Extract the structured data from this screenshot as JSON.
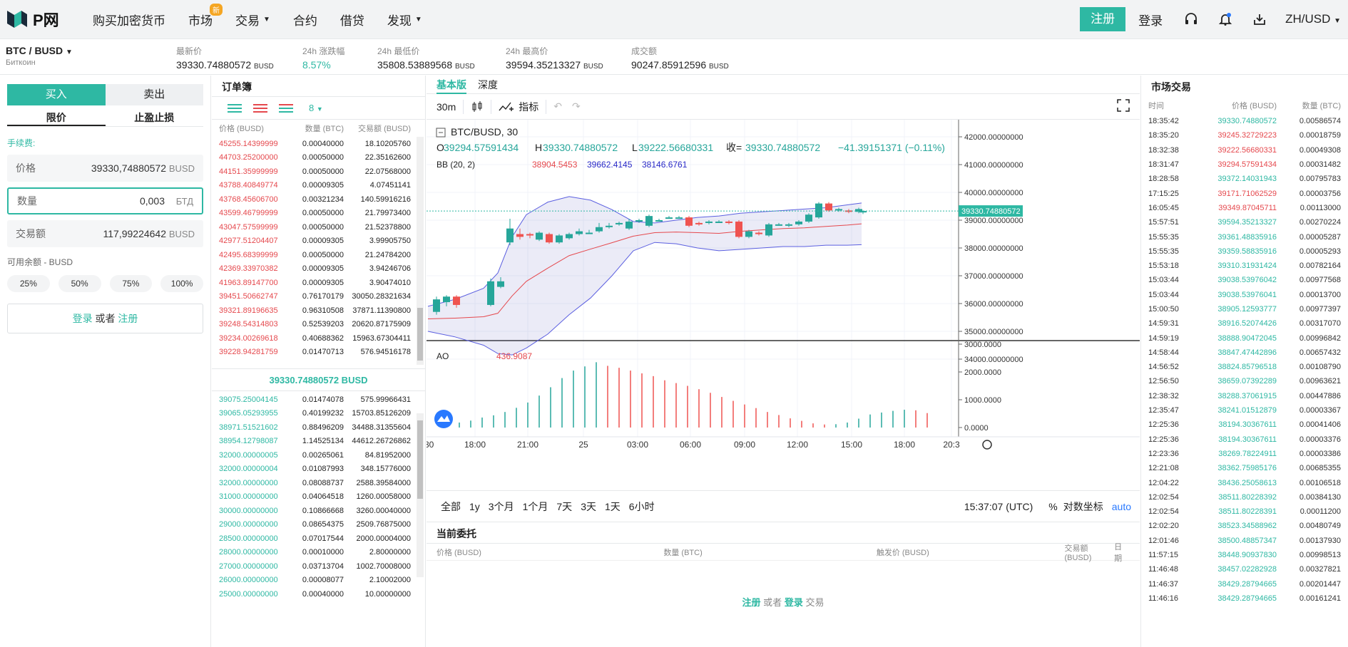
{
  "nav": {
    "brand": "P网",
    "items": [
      {
        "label": "购买加密货币"
      },
      {
        "label": "市场",
        "badge": "新"
      },
      {
        "label": "交易"
      },
      {
        "label": "合约"
      },
      {
        "label": "借贷"
      },
      {
        "label": "发现"
      }
    ],
    "register": "注册",
    "login": "登录",
    "lang": "ZH/USD"
  },
  "ticker": {
    "pair": "BTC / BUSD",
    "pair_sub": "Биткоин",
    "items": [
      {
        "label": "最新价",
        "value": "39330.74880572",
        "unit": "BUSD"
      },
      {
        "label": "24h 涨跌幅",
        "value": "8.57%",
        "unit": ""
      },
      {
        "label": "24h 最低价",
        "value": "35808.53889568",
        "unit": "BUSD"
      },
      {
        "label": "24h 最高价",
        "value": "39594.35213327",
        "unit": "BUSD"
      },
      {
        "label": "成交额",
        "value": "90247.85912596",
        "unit": "BUSD"
      }
    ]
  },
  "trade": {
    "buy": "买入",
    "sell": "卖出",
    "limit": "限价",
    "stop": "止盈止损",
    "fee": "手续费:",
    "price_label": "价格",
    "price_value": "39330,74880572",
    "price_unit": "BUSD",
    "qty_label": "数量",
    "qty_value": "0,003",
    "qty_unit": "БТД",
    "total_label": "交易额",
    "total_value": "117,99224642",
    "total_unit": "BUSD",
    "available": "可用余额 - BUSD",
    "pcts": [
      "25%",
      "50%",
      "75%",
      "100%"
    ],
    "login": "登录",
    "or": "或者",
    "register": "注册"
  },
  "orderbook": {
    "title": "订单簿",
    "precision": "8",
    "headers": [
      "价格 (BUSD)",
      "数量 (BTC)",
      "交易额 (BUSD)"
    ],
    "asks": [
      [
        "45255.14399999",
        "0.00040000",
        "18.10205760"
      ],
      [
        "44703.25200000",
        "0.00050000",
        "22.35162600"
      ],
      [
        "44151.35999999",
        "0.00050000",
        "22.07568000"
      ],
      [
        "43788.40849774",
        "0.00009305",
        "4.07451141"
      ],
      [
        "43768.45606700",
        "0.00321234",
        "140.59916216"
      ],
      [
        "43599.46799999",
        "0.00050000",
        "21.79973400"
      ],
      [
        "43047.57599999",
        "0.00050000",
        "21.52378800"
      ],
      [
        "42977.51204407",
        "0.00009305",
        "3.99905750"
      ],
      [
        "42495.68399999",
        "0.00050000",
        "21.24784200"
      ],
      [
        "42369.33970382",
        "0.00009305",
        "3.94246706"
      ],
      [
        "41963.89147700",
        "0.00009305",
        "3.90474010"
      ],
      [
        "39451.50662747",
        "0.76170179",
        "30050.28321634"
      ],
      [
        "39321.89196635",
        "0.96310508",
        "37871.11390800"
      ],
      [
        "39248.54314803",
        "0.52539203",
        "20620.87175909"
      ],
      [
        "39234.00269618",
        "0.40688362",
        "15963.67304411"
      ],
      [
        "39228.94281759",
        "0.01470713",
        "576.94516178"
      ]
    ],
    "mid": "39330.74880572 BUSD",
    "bids": [
      [
        "39075.25004145",
        "0.01474078",
        "575.99966431"
      ],
      [
        "39065.05293955",
        "0.40199232",
        "15703.85126209"
      ],
      [
        "38971.51521602",
        "0.88496209",
        "34488.31355604"
      ],
      [
        "38954.12798087",
        "1.14525134",
        "44612.26726862"
      ],
      [
        "32000.00000005",
        "0.00265061",
        "84.81952000"
      ],
      [
        "32000.00000004",
        "0.01087993",
        "348.15776000"
      ],
      [
        "32000.00000000",
        "0.08088737",
        "2588.39584000"
      ],
      [
        "31000.00000000",
        "0.04064518",
        "1260.00058000"
      ],
      [
        "30000.00000000",
        "0.10866668",
        "3260.00040000"
      ],
      [
        "29000.00000000",
        "0.08654375",
        "2509.76875000"
      ],
      [
        "28500.00000000",
        "0.07017544",
        "2000.00004000"
      ],
      [
        "28000.00000000",
        "0.00010000",
        "2.80000000"
      ],
      [
        "27000.00000000",
        "0.03713704",
        "1002.70008000"
      ],
      [
        "26000.00000000",
        "0.00008077",
        "2.10002000"
      ],
      [
        "25000.00000000",
        "0.00040000",
        "10.00000000"
      ]
    ]
  },
  "chart": {
    "tabs": [
      "基本版",
      "深度"
    ],
    "interval": "30m",
    "indicators_label": "指标",
    "symbol": "BTC/BUSD, 30",
    "o_label": "O",
    "o": "39294.57591434",
    "h_label": "H",
    "h": "39330.74880572",
    "l_label": "L",
    "l": "39222.56680331",
    "c_label": "收=",
    "c": "39330.74880572",
    "chg": "−41.39151371 (−0.11%)",
    "bb_label": "BB (20, 2)",
    "bb_upper": "38904.5453",
    "bb_mid": "39662.4145",
    "bb_lower": "38146.6761",
    "price_ticks": [
      "42000.00000000",
      "41000.00000000",
      "40000.00000000",
      "39000.00000000",
      "38000.00000000",
      "37000.00000000",
      "36000.00000000",
      "35000.00000000",
      "34000.00000000"
    ],
    "last_price": "39330.74880572",
    "ao_label": "AO",
    "ao_value": "436.9087",
    "ao_ticks": [
      "3000.0000",
      "2000.0000",
      "1000.0000",
      "0.0000"
    ],
    "time_ticks": [
      ":30",
      "18:00",
      "21:00",
      "25",
      "03:00",
      "06:00",
      "09:00",
      "12:00",
      "15:00",
      "18:00",
      "20:3"
    ],
    "ranges": [
      "全部",
      "1y",
      "3个月",
      "1个月",
      "7天",
      "3天",
      "1天",
      "6小时"
    ],
    "clock": "15:37:07 (UTC)",
    "pct": "%",
    "log": "对数坐标",
    "auto": "auto"
  },
  "orders": {
    "title": "当前委托",
    "headers": [
      "价格 (BUSD)",
      "数量 (BTC)",
      "触发价 (BUSD)",
      "交易额 (BUSD)",
      "日期"
    ],
    "reg": "注册",
    "or": "或者",
    "login": "登录",
    "trade": "交易"
  },
  "market_trades": {
    "title": "市场交易",
    "headers": [
      "时间",
      "价格 (BUSD)",
      "数量 (BTC)"
    ],
    "rows": [
      [
        "18:35:42",
        "39330.74880572",
        "0.00586574",
        "g"
      ],
      [
        "18:35:20",
        "39245.32729223",
        "0.00018759",
        "r"
      ],
      [
        "18:32:38",
        "39222.56680331",
        "0.00049308",
        "r"
      ],
      [
        "18:31:47",
        "39294.57591434",
        "0.00031482",
        "r"
      ],
      [
        "18:28:58",
        "39372.14031943",
        "0.00795783",
        "g"
      ],
      [
        "17:15:25",
        "39171.71062529",
        "0.00003756",
        "r"
      ],
      [
        "16:05:45",
        "39349.87045711",
        "0.00113000",
        "r"
      ],
      [
        "15:57:51",
        "39594.35213327",
        "0.00270224",
        "g"
      ],
      [
        "15:55:35",
        "39361.48835916",
        "0.00005287",
        "g"
      ],
      [
        "15:55:35",
        "39359.58835916",
        "0.00005293",
        "g"
      ],
      [
        "15:53:18",
        "39310.31931424",
        "0.00782164",
        "g"
      ],
      [
        "15:03:44",
        "39038.53976042",
        "0.00977568",
        "g"
      ],
      [
        "15:03:44",
        "39038.53976041",
        "0.00013700",
        "g"
      ],
      [
        "15:00:50",
        "38905.12593777",
        "0.00977397",
        "g"
      ],
      [
        "14:59:31",
        "38916.52074426",
        "0.00317070",
        "g"
      ],
      [
        "14:59:19",
        "38888.90472045",
        "0.00996842",
        "g"
      ],
      [
        "14:58:44",
        "38847.47442896",
        "0.00657432",
        "g"
      ],
      [
        "14:56:52",
        "38824.85796518",
        "0.00108790",
        "g"
      ],
      [
        "12:56:50",
        "38659.07392289",
        "0.00963621",
        "g"
      ],
      [
        "12:38:32",
        "38288.37061915",
        "0.00447886",
        "g"
      ],
      [
        "12:35:47",
        "38241.01512879",
        "0.00003367",
        "g"
      ],
      [
        "12:25:36",
        "38194.30367611",
        "0.00041406",
        "g"
      ],
      [
        "12:25:36",
        "38194.30367611",
        "0.00003376",
        "g"
      ],
      [
        "12:23:36",
        "38269.78224911",
        "0.00003386",
        "g"
      ],
      [
        "12:21:08",
        "38362.75985176",
        "0.00685355",
        "g"
      ],
      [
        "12:04:22",
        "38436.25058613",
        "0.00106518",
        "g"
      ],
      [
        "12:02:54",
        "38511.80228392",
        "0.00384130",
        "g"
      ],
      [
        "12:02:54",
        "38511.80228391",
        "0.00011200",
        "g"
      ],
      [
        "12:02:20",
        "38523.34588962",
        "0.00480749",
        "g"
      ],
      [
        "12:01:46",
        "38500.48857347",
        "0.00137930",
        "g"
      ],
      [
        "11:57:15",
        "38448.90937830",
        "0.00998513",
        "g"
      ],
      [
        "11:46:48",
        "38457.02282928",
        "0.00327821",
        "g"
      ],
      [
        "11:46:37",
        "38429.28794665",
        "0.00201447",
        "g"
      ],
      [
        "11:46:16",
        "38429.28794665",
        "0.00161241",
        "g"
      ]
    ]
  },
  "colors": {
    "accent": "#2eb8a3",
    "up": "#2eb8a3",
    "down": "#e5484d"
  },
  "icons": [
    "logo-icon",
    "headset-icon",
    "bell-icon",
    "download-icon",
    "candle-icon",
    "indicator-icon",
    "undo-icon",
    "redo-icon",
    "fullscreen-icon",
    "gear-icon"
  ]
}
